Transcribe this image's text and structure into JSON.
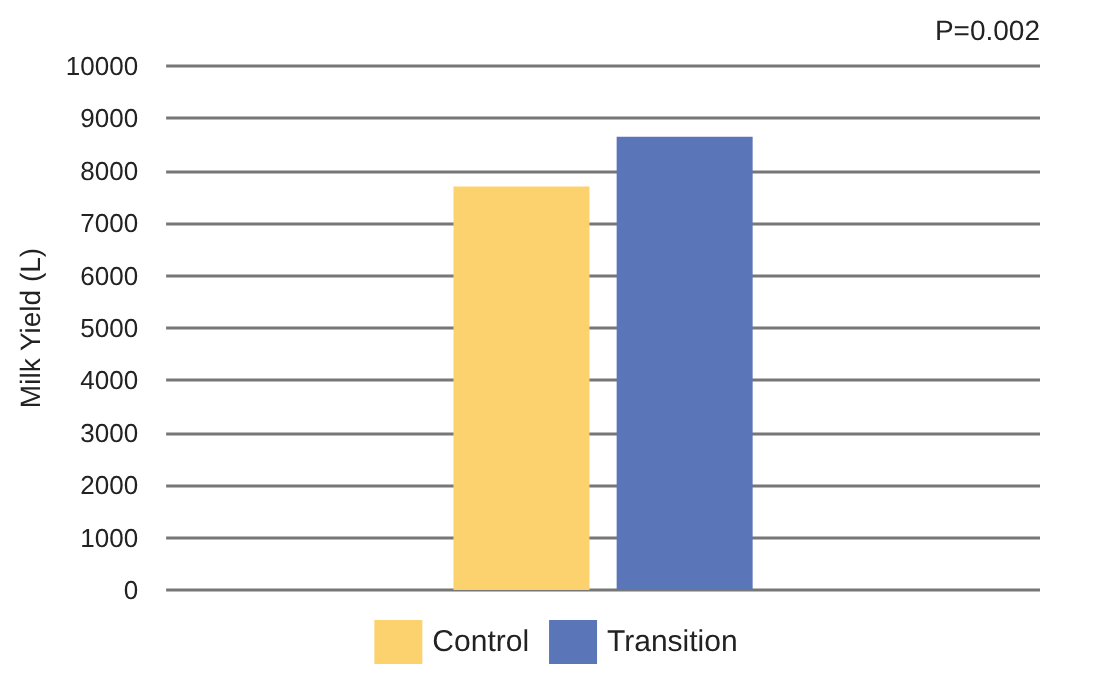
{
  "chart_data": {
    "type": "bar",
    "ylabel": "Milk Yield (L)",
    "categories": [
      null
    ],
    "series": [
      {
        "name": "Control",
        "color": "#fcd26f",
        "values": [
          7700
        ]
      },
      {
        "name": "Transition",
        "color": "#5b76b8",
        "values": [
          8650
        ]
      }
    ],
    "ylim": [
      0,
      10000
    ],
    "yticks": [
      0,
      1000,
      2000,
      3000,
      4000,
      5000,
      6000,
      7000,
      8000,
      9000,
      10000
    ],
    "grid": "y",
    "legend": "bottom",
    "annotations": [
      "P=0.002"
    ]
  }
}
